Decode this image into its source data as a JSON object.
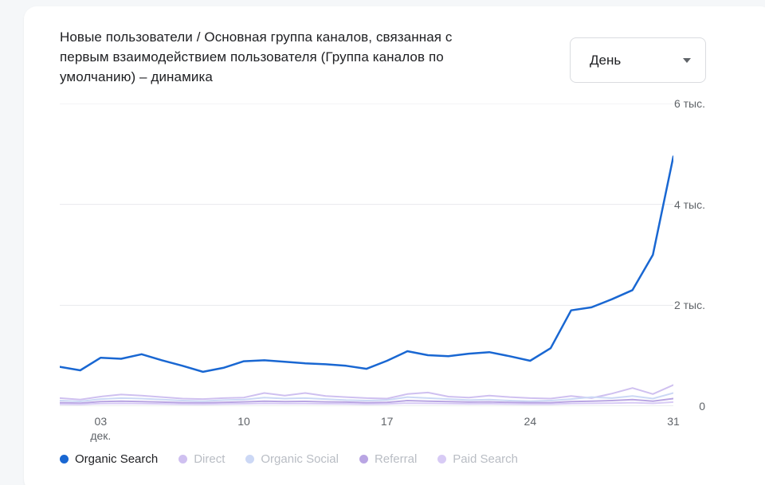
{
  "card": {
    "title_lines": [
      "Новые пользователи / Основная группа каналов, связанная с",
      "первым взаимодействием пользователя (Группа каналов по",
      "умолчанию) – динамика"
    ],
    "period_selector": {
      "value": "День"
    }
  },
  "colors": {
    "background": "#f5f7f9",
    "card_bg": "#ffffff",
    "title_text": "#202124",
    "axis_text": "#5f6368",
    "grid_line": "#e8eaed",
    "axis_line": "#dadce0",
    "dropdown_border": "#dadce0",
    "legend_inactive_text": "#b9bdc4",
    "accent_blue": "#1967d2"
  },
  "chart_data": {
    "type": "line",
    "title": "Новые пользователи / Основная группа каналов, связанная с первым взаимодействием пользователя (Группа каналов по умолчанию) – динамика",
    "x_unit": "день декабря",
    "x_days": [
      1,
      2,
      3,
      4,
      5,
      6,
      7,
      8,
      9,
      10,
      11,
      12,
      13,
      14,
      15,
      16,
      17,
      18,
      19,
      20,
      21,
      22,
      23,
      24,
      25,
      26,
      27,
      28,
      29,
      30,
      31
    ],
    "xticks": [
      {
        "x": 3,
        "label": "03",
        "sublabel": "дек."
      },
      {
        "x": 10,
        "label": "10"
      },
      {
        "x": 17,
        "label": "17"
      },
      {
        "x": 24,
        "label": "24"
      },
      {
        "x": 31,
        "label": "31"
      }
    ],
    "ylim": [
      0,
      6000
    ],
    "yticks": [
      {
        "value": 0,
        "label": "0"
      },
      {
        "value": 2000,
        "label": "2 тыс."
      },
      {
        "value": 4000,
        "label": "4 тыс."
      },
      {
        "value": 6000,
        "label": "6 тыс."
      }
    ],
    "grid": true,
    "legend_position": "bottom",
    "series": [
      {
        "name": "Organic Search",
        "color": "#1967d2",
        "active": true,
        "values": [
          780,
          710,
          960,
          940,
          1030,
          910,
          800,
          680,
          760,
          890,
          910,
          880,
          850,
          830,
          800,
          740,
          900,
          1090,
          1010,
          990,
          1040,
          1070,
          990,
          900,
          1150,
          1900,
          1960,
          2120,
          2300,
          3000,
          4950
        ]
      },
      {
        "name": "Direct",
        "color": "#cfc0f0",
        "active": false,
        "values": [
          160,
          130,
          190,
          230,
          210,
          180,
          150,
          140,
          160,
          170,
          260,
          210,
          260,
          200,
          180,
          160,
          150,
          240,
          270,
          190,
          170,
          210,
          180,
          160,
          150,
          200,
          160,
          250,
          360,
          240,
          420
        ]
      },
      {
        "name": "Organic Social",
        "color": "#ccd8f5",
        "active": false,
        "values": [
          110,
          95,
          140,
          160,
          150,
          130,
          110,
          100,
          120,
          130,
          170,
          150,
          160,
          140,
          120,
          110,
          120,
          180,
          160,
          140,
          120,
          130,
          110,
          100,
          110,
          140,
          180,
          160,
          200,
          150,
          260
        ]
      },
      {
        "name": "Referral",
        "color": "#b9a5e3",
        "active": false,
        "values": [
          70,
          60,
          90,
          100,
          90,
          80,
          70,
          65,
          75,
          85,
          100,
          90,
          95,
          85,
          80,
          70,
          75,
          110,
          100,
          90,
          80,
          85,
          75,
          70,
          70,
          90,
          100,
          110,
          130,
          100,
          150
        ]
      },
      {
        "name": "Paid Search",
        "color": "#d8cbf5",
        "active": false,
        "values": [
          40,
          35,
          50,
          55,
          50,
          45,
          40,
          38,
          42,
          48,
          55,
          50,
          52,
          48,
          45,
          40,
          42,
          60,
          55,
          50,
          45,
          48,
          42,
          40,
          40,
          50,
          55,
          60,
          70,
          55,
          80
        ]
      }
    ]
  }
}
